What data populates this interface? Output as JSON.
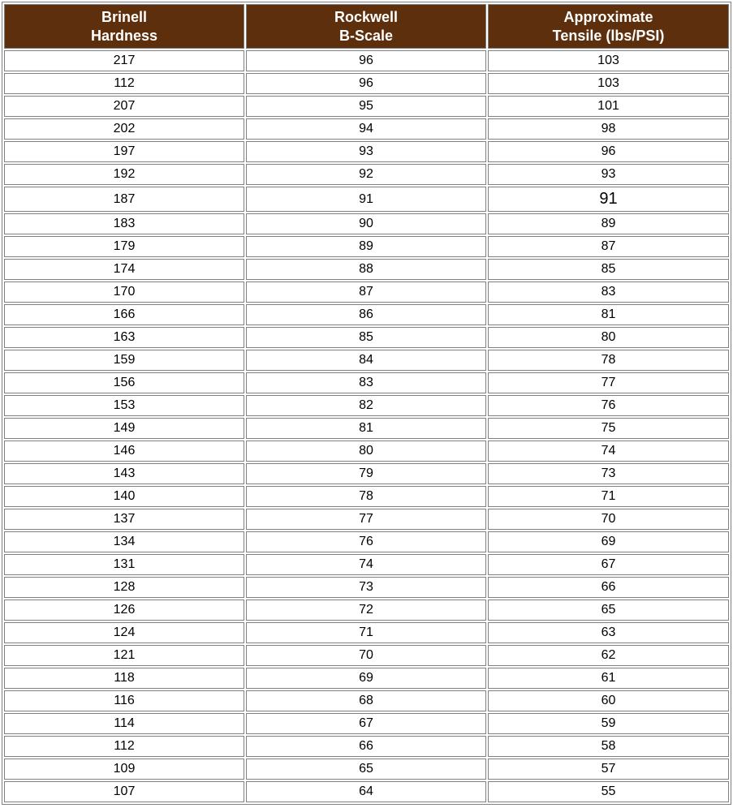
{
  "table": {
    "type": "table",
    "header_bg": "#5e2f0d",
    "header_text_color": "#ffffff",
    "header_fontsize": 18,
    "cell_fontsize": 16,
    "border_color": "#808080",
    "background_color": "#ffffff",
    "columns": [
      {
        "line1": "Brinell",
        "line2": "Hardness",
        "align": "center"
      },
      {
        "line1": "Rockwell",
        "line2": "B-Scale",
        "align": "center"
      },
      {
        "line1": "Approximate",
        "line2": "Tensile (lbs/PSI)",
        "align": "center"
      }
    ],
    "rows": [
      [
        "217",
        "96",
        "103"
      ],
      [
        "112",
        "96",
        "103"
      ],
      [
        "207",
        "95",
        "101"
      ],
      [
        "202",
        "94",
        "98"
      ],
      [
        "197",
        "93",
        "96"
      ],
      [
        "192",
        "92",
        "93"
      ],
      [
        "187",
        "91",
        "91"
      ],
      [
        "183",
        "90",
        "89"
      ],
      [
        "179",
        "89",
        "87"
      ],
      [
        "174",
        "88",
        "85"
      ],
      [
        "170",
        "87",
        "83"
      ],
      [
        "166",
        "86",
        "81"
      ],
      [
        "163",
        "85",
        "80"
      ],
      [
        "159",
        "84",
        "78"
      ],
      [
        "156",
        "83",
        "77"
      ],
      [
        "153",
        "82",
        "76"
      ],
      [
        "149",
        "81",
        "75"
      ],
      [
        "146",
        "80",
        "74"
      ],
      [
        "143",
        "79",
        "73"
      ],
      [
        "140",
        "78",
        "71"
      ],
      [
        "137",
        "77",
        "70"
      ],
      [
        "134",
        "76",
        "69"
      ],
      [
        "131",
        "74",
        "67"
      ],
      [
        "128",
        "73",
        "66"
      ],
      [
        "126",
        "72",
        "65"
      ],
      [
        "124",
        "71",
        "63"
      ],
      [
        "121",
        "70",
        "62"
      ],
      [
        "118",
        "69",
        "61"
      ],
      [
        "116",
        "68",
        "60"
      ],
      [
        "114",
        "67",
        "59"
      ],
      [
        "112",
        "66",
        "58"
      ],
      [
        "109",
        "65",
        "57"
      ],
      [
        "107",
        "64",
        "55"
      ]
    ],
    "big_cell": {
      "row": 6,
      "col": 2,
      "fontsize": 20
    }
  }
}
